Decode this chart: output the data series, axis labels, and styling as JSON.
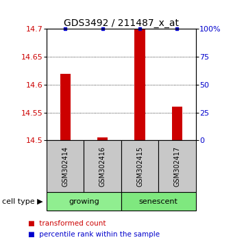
{
  "title": "GDS3492 / 211487_x_at",
  "samples": [
    "GSM302414",
    "GSM302416",
    "GSM302415",
    "GSM302417"
  ],
  "red_values": [
    14.62,
    14.505,
    14.7,
    14.56
  ],
  "blue_percentiles": [
    100,
    100,
    100,
    100
  ],
  "y_min": 14.5,
  "y_max": 14.7,
  "y_ticks_left": [
    14.5,
    14.55,
    14.6,
    14.65,
    14.7
  ],
  "y_ticks_right": [
    0,
    25,
    50,
    75,
    100
  ],
  "groups": [
    {
      "label": "growing",
      "samples": [
        0,
        1
      ],
      "color": "#90EE90"
    },
    {
      "label": "senescent",
      "samples": [
        2,
        3
      ],
      "color": "#7FE87F"
    }
  ],
  "bar_color": "#CC0000",
  "dot_color": "#0000CC",
  "background_color": "#FFFFFF",
  "group_box_color": "#C8C8C8",
  "cell_type_label": "cell type",
  "legend_red_label": "transformed count",
  "legend_blue_label": "percentile rank within the sample",
  "title_fontsize": 10,
  "tick_fontsize": 8,
  "sample_fontsize": 7,
  "group_fontsize": 8,
  "legend_fontsize": 7.5
}
